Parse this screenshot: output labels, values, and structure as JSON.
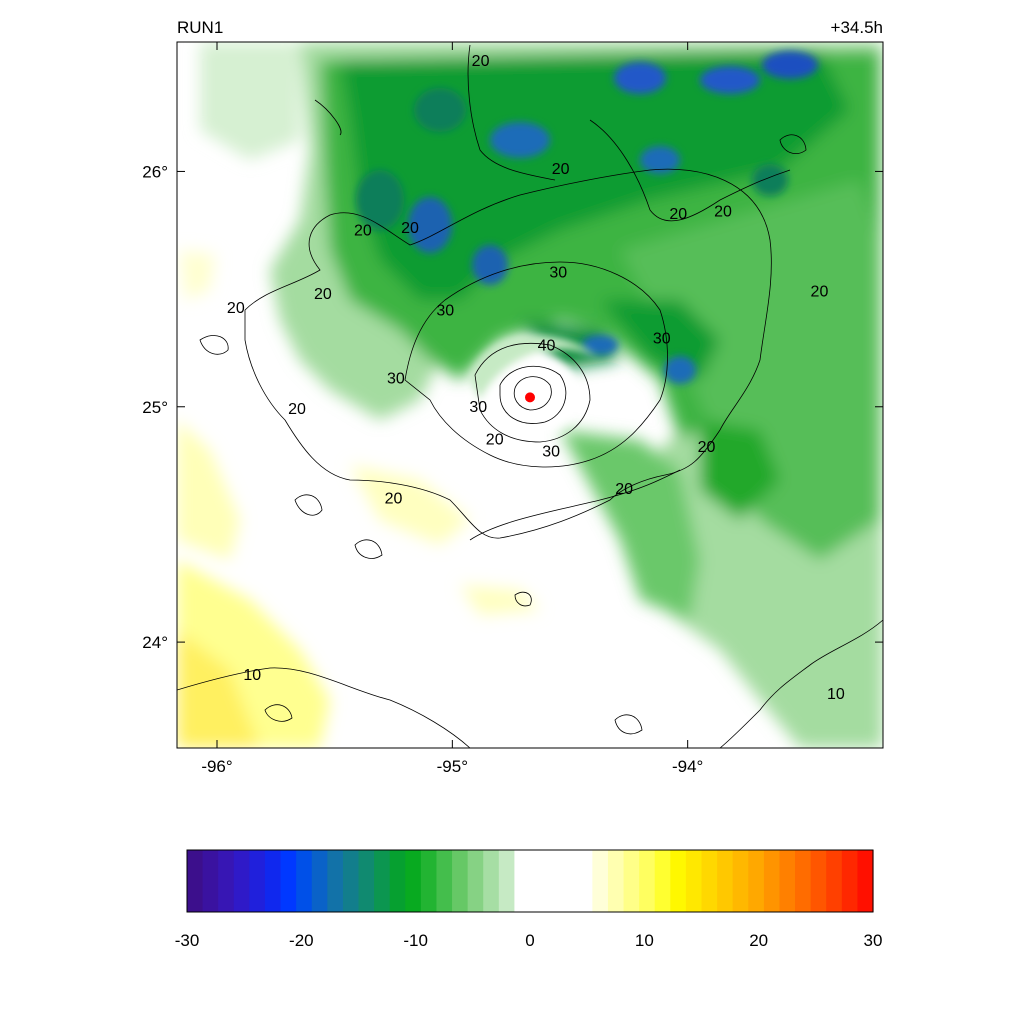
{
  "title_left": "RUN1",
  "title_right": "+34.5h",
  "map": {
    "x_ticks": [
      {
        "lon": -96,
        "label": "-96°"
      },
      {
        "lon": -95,
        "label": "-95°"
      },
      {
        "lon": -94,
        "label": "-94°"
      }
    ],
    "y_ticks": [
      {
        "lat": 26,
        "label": "26°"
      },
      {
        "lat": 25,
        "label": "25°"
      },
      {
        "lat": 24,
        "label": "24°"
      }
    ],
    "lon_range": [
      -96.17,
      -93.17
    ],
    "lat_range": [
      23.55,
      26.55
    ],
    "storm_center": {
      "lon": -94.67,
      "lat": 25.04,
      "color": "#ff0000"
    },
    "contour_levels": [
      {
        "value": "10",
        "lon": -95.85,
        "lat": 23.86
      },
      {
        "value": "10",
        "lon": -93.37,
        "lat": 23.78
      },
      {
        "value": "20",
        "lon": -95.92,
        "lat": 25.42
      },
      {
        "value": "20",
        "lon": -95.66,
        "lat": 24.99
      },
      {
        "value": "20",
        "lon": -95.25,
        "lat": 24.61
      },
      {
        "value": "20",
        "lon": -95.55,
        "lat": 25.48
      },
      {
        "value": "20",
        "lon": -95.38,
        "lat": 25.75
      },
      {
        "value": "20",
        "lon": -95.18,
        "lat": 25.76
      },
      {
        "value": "20",
        "lon": -94.88,
        "lat": 26.47
      },
      {
        "value": "20",
        "lon": -94.54,
        "lat": 26.01
      },
      {
        "value": "20",
        "lon": -94.04,
        "lat": 25.82
      },
      {
        "value": "20",
        "lon": -93.85,
        "lat": 25.83
      },
      {
        "value": "20",
        "lon": -93.44,
        "lat": 25.49
      },
      {
        "value": "20",
        "lon": -93.92,
        "lat": 24.83
      },
      {
        "value": "20",
        "lon": -94.27,
        "lat": 24.65
      },
      {
        "value": "20",
        "lon": -94.82,
        "lat": 24.86
      },
      {
        "value": "30",
        "lon": -94.55,
        "lat": 25.57
      },
      {
        "value": "30",
        "lon": -95.03,
        "lat": 25.41
      },
      {
        "value": "30",
        "lon": -95.24,
        "lat": 25.12
      },
      {
        "value": "30",
        "lon": -94.89,
        "lat": 25.0
      },
      {
        "value": "30",
        "lon": -94.11,
        "lat": 25.29
      },
      {
        "value": "30",
        "lon": -94.58,
        "lat": 24.81
      },
      {
        "value": "40",
        "lon": -94.6,
        "lat": 25.26
      }
    ]
  },
  "colorbar": {
    "min": -30,
    "max": 30,
    "tick_labels": [
      "-30",
      "-20",
      "-10",
      "0",
      "10",
      "20",
      "30"
    ],
    "colors": [
      "#3c0f8c",
      "#3a12a0",
      "#3716b4",
      "#2f1ac8",
      "#2020dc",
      "#1028ee",
      "#0038ff",
      "#0050e8",
      "#0a62c8",
      "#1272a8",
      "#127e8c",
      "#108a70",
      "#0c9650",
      "#06a030",
      "#08aa20",
      "#22b432",
      "#44be4c",
      "#66c866",
      "#86d284",
      "#a6dea4",
      "#c6eac4",
      "#ffffff",
      "#ffffff",
      "#ffffff",
      "#ffffff",
      "#ffffff",
      "#ffffd8",
      "#ffffb0",
      "#ffff88",
      "#ffff60",
      "#ffff30",
      "#fff800",
      "#ffe800",
      "#ffd800",
      "#ffc800",
      "#ffb800",
      "#ffa800",
      "#ff9400",
      "#ff8000",
      "#ff6c00",
      "#ff5600",
      "#ff4000",
      "#ff2800",
      "#ff1000"
    ]
  }
}
